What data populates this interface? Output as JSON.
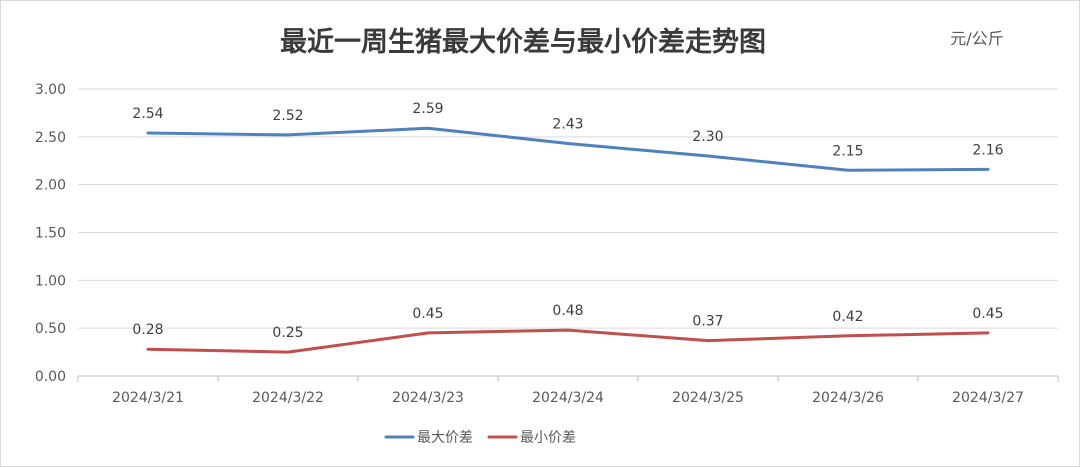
{
  "chart_data": {
    "type": "line",
    "title": "最近一周生猪最大价差与最小价差走势图",
    "unit_label": "元/公斤",
    "categories": [
      "2024/3/21",
      "2024/3/22",
      "2024/3/23",
      "2024/3/24",
      "2024/3/25",
      "2024/3/26",
      "2024/3/27"
    ],
    "ylim": [
      0,
      3
    ],
    "yticks": [
      "0.00",
      "0.50",
      "1.00",
      "1.50",
      "2.00",
      "2.50",
      "3.00"
    ],
    "grid": true,
    "legend_position": "bottom",
    "series": [
      {
        "name": "最大价差",
        "color": "#4f81bd",
        "values": [
          2.54,
          2.52,
          2.59,
          2.43,
          2.3,
          2.15,
          2.16
        ],
        "labels": [
          "2.54",
          "2.52",
          "2.59",
          "2.43",
          "2.30",
          "2.15",
          "2.16"
        ]
      },
      {
        "name": "最小价差",
        "color": "#c0504d",
        "values": [
          0.28,
          0.25,
          0.45,
          0.48,
          0.37,
          0.42,
          0.45
        ],
        "labels": [
          "0.28",
          "0.25",
          "0.45",
          "0.48",
          "0.37",
          "0.42",
          "0.45"
        ]
      }
    ]
  }
}
